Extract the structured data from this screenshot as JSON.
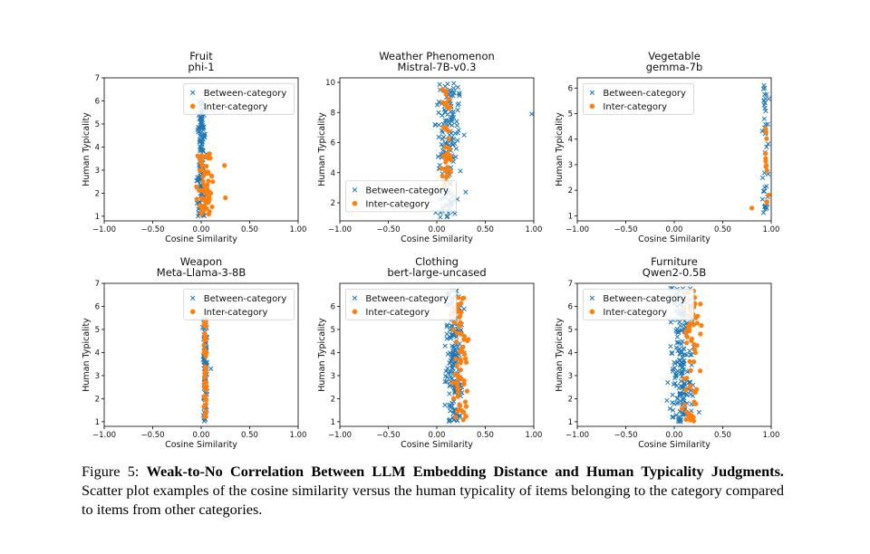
{
  "figure": {
    "caption": {
      "label": "Figure 5:",
      "bold": "Weak-to-No Correlation Between LLM Embedding Distance and Human Typicality Judgments.",
      "text": "Scatter plot examples of the cosine similarity versus the human typicality of items belonging to the category compared to items from other categories."
    }
  },
  "chart_data": [
    {
      "type": "scatter",
      "title": [
        "Fruit",
        "phi-1"
      ],
      "xlabel": "Cosine Similarity",
      "ylabel": "Human Typicality",
      "xlim": [
        -1.0,
        1.0
      ],
      "ylim": [
        0.8,
        7.0
      ],
      "xticks": [
        "−1.00",
        "−0.50",
        "0.00",
        "0.50",
        "1.00"
      ],
      "xtick_values": [
        -1.0,
        -0.5,
        0.0,
        0.5,
        1.0
      ],
      "yticks": [
        "1",
        "2",
        "3",
        "4",
        "5",
        "6",
        "7"
      ],
      "ytick_values": [
        1,
        2,
        3,
        4,
        5,
        6,
        7
      ],
      "legend": "top-right",
      "series": [
        {
          "name": "Between-category",
          "marker": "x",
          "color": "#1f77b4",
          "cluster": {
            "xmean": 0.0,
            "xspread": 0.04,
            "ymin": 1.0,
            "ymax": 6.0,
            "n": 140
          }
        },
        {
          "name": "Inter-category",
          "marker": "o",
          "color": "#ff7f0e",
          "cluster": {
            "xmean": 0.04,
            "xspread": 0.07,
            "ymin": 1.0,
            "ymax": 3.8,
            "n": 60
          },
          "points": [
            [
              0.24,
              3.2
            ],
            [
              0.25,
              1.8
            ],
            [
              0.12,
              2.5
            ],
            [
              0.1,
              2.0
            ]
          ]
        }
      ]
    },
    {
      "type": "scatter",
      "title": [
        "Weather Phenomenon",
        "Mistral-7B-v0.3"
      ],
      "xlabel": "Cosine Similarity",
      "ylabel": "Human Typicality",
      "xlim": [
        -1.0,
        1.0
      ],
      "ylim": [
        0.8,
        10.3
      ],
      "xticks": [
        "−1.00",
        "−0.50",
        "0.00",
        "0.50",
        "1.00"
      ],
      "xtick_values": [
        -1.0,
        -0.5,
        0.0,
        0.5,
        1.0
      ],
      "yticks": [
        "2",
        "4",
        "6",
        "8",
        "10"
      ],
      "ytick_values": [
        2,
        4,
        6,
        8,
        10
      ],
      "legend": "lower-left",
      "series": [
        {
          "name": "Between-category",
          "marker": "x",
          "color": "#1f77b4",
          "cluster": {
            "xmean": 0.12,
            "xspread": 0.12,
            "ymin": 1.0,
            "ymax": 10.0,
            "n": 160
          },
          "points": [
            [
              0.98,
              7.9
            ]
          ]
        },
        {
          "name": "Inter-category",
          "marker": "o",
          "color": "#ff7f0e",
          "cluster": {
            "xmean": 0.1,
            "xspread": 0.05,
            "ymin": 3.0,
            "ymax": 9.8,
            "n": 40
          }
        }
      ]
    },
    {
      "type": "scatter",
      "title": [
        "Vegetable",
        "gemma-7b"
      ],
      "xlabel": "Cosine Similarity",
      "ylabel": "Human Typicality",
      "xlim": [
        -1.0,
        1.0
      ],
      "ylim": [
        0.8,
        6.4
      ],
      "xticks": [
        "−1.00",
        "−0.50",
        "0.00",
        "0.50",
        "1.00"
      ],
      "xtick_values": [
        -1.0,
        -0.5,
        0.0,
        0.5,
        1.0
      ],
      "yticks": [
        "1",
        "2",
        "3",
        "4",
        "5",
        "6"
      ],
      "ytick_values": [
        1,
        2,
        3,
        4,
        5,
        6
      ],
      "legend": "top-left",
      "series": [
        {
          "name": "Between-category",
          "marker": "x",
          "color": "#1f77b4",
          "cluster": {
            "xmean": 0.94,
            "xspread": 0.03,
            "ymin": 1.0,
            "ymax": 6.2,
            "n": 40
          }
        },
        {
          "name": "Inter-category",
          "marker": "o",
          "color": "#ff7f0e",
          "cluster": {
            "xmean": 0.95,
            "xspread": 0.02,
            "ymin": 1.2,
            "ymax": 4.4,
            "n": 12
          },
          "points": [
            [
              0.8,
              1.3
            ]
          ]
        }
      ]
    },
    {
      "type": "scatter",
      "title": [
        "Weapon",
        "Meta-Llama-3-8B"
      ],
      "xlabel": "Cosine Similarity",
      "ylabel": "Human Typicality",
      "xlim": [
        -1.0,
        1.0
      ],
      "ylim": [
        0.8,
        7.0
      ],
      "xticks": [
        "−1.00",
        "−0.50",
        "0.00",
        "0.50",
        "1.00"
      ],
      "xtick_values": [
        -1.0,
        -0.5,
        0.0,
        0.5,
        1.0
      ],
      "yticks": [
        "1",
        "2",
        "3",
        "4",
        "5",
        "6",
        "7"
      ],
      "ytick_values": [
        1,
        2,
        3,
        4,
        5,
        6,
        7
      ],
      "legend": "top-right",
      "series": [
        {
          "name": "Between-category",
          "marker": "x",
          "color": "#1f77b4",
          "cluster": {
            "xmean": 0.04,
            "xspread": 0.02,
            "ymin": 1.0,
            "ymax": 5.5,
            "n": 110
          },
          "points": [
            [
              0.1,
              3.3
            ]
          ]
        },
        {
          "name": "Inter-category",
          "marker": "o",
          "color": "#ff7f0e",
          "cluster": {
            "xmean": 0.04,
            "xspread": 0.015,
            "ymin": 1.0,
            "ymax": 5.5,
            "n": 50
          }
        }
      ]
    },
    {
      "type": "scatter",
      "title": [
        "Clothing",
        "bert-large-uncased"
      ],
      "xlabel": "Cosine Similarity",
      "ylabel": "Human Typicality",
      "xlim": [
        -1.0,
        1.0
      ],
      "ylim": [
        0.8,
        7.0
      ],
      "xticks": [
        "−1.00",
        "−0.50",
        "0.00",
        "0.50",
        "1.00"
      ],
      "xtick_values": [
        -1.0,
        -0.5,
        0.0,
        0.5,
        1.0
      ],
      "yticks": [
        "1",
        "2",
        "3",
        "4",
        "5",
        "6"
      ],
      "ytick_values": [
        1,
        2,
        3,
        4,
        5,
        6
      ],
      "legend": "top-left",
      "series": [
        {
          "name": "Between-category",
          "marker": "x",
          "color": "#1f77b4",
          "cluster": {
            "xmean": 0.18,
            "xspread": 0.08,
            "ymin": 1.0,
            "ymax": 6.7,
            "n": 180
          }
        },
        {
          "name": "Inter-category",
          "marker": "o",
          "color": "#ff7f0e",
          "cluster": {
            "xmean": 0.24,
            "xspread": 0.07,
            "ymin": 1.0,
            "ymax": 6.4,
            "n": 70
          }
        }
      ]
    },
    {
      "type": "scatter",
      "title": [
        "Furniture",
        "Qwen2-0.5B"
      ],
      "xlabel": "Cosine Similarity",
      "ylabel": "Human Typicality",
      "xlim": [
        -1.0,
        1.0
      ],
      "ylim": [
        0.8,
        7.0
      ],
      "xticks": [
        "−1.00",
        "−0.50",
        "0.00",
        "0.50",
        "1.00"
      ],
      "xtick_values": [
        -1.0,
        -0.5,
        0.0,
        0.5,
        1.0
      ],
      "yticks": [
        "1",
        "2",
        "3",
        "4",
        "5",
        "6",
        "7"
      ],
      "ytick_values": [
        1,
        2,
        3,
        4,
        5,
        6,
        7
      ],
      "legend": "top-left",
      "series": [
        {
          "name": "Between-category",
          "marker": "x",
          "color": "#1f77b4",
          "cluster": {
            "xmean": 0.08,
            "xspread": 0.12,
            "ymin": 1.0,
            "ymax": 6.8,
            "n": 200
          }
        },
        {
          "name": "Inter-category",
          "marker": "o",
          "color": "#ff7f0e",
          "cluster": {
            "xmean": 0.18,
            "xspread": 0.1,
            "ymin": 1.0,
            "ymax": 6.7,
            "n": 60
          }
        }
      ]
    }
  ]
}
